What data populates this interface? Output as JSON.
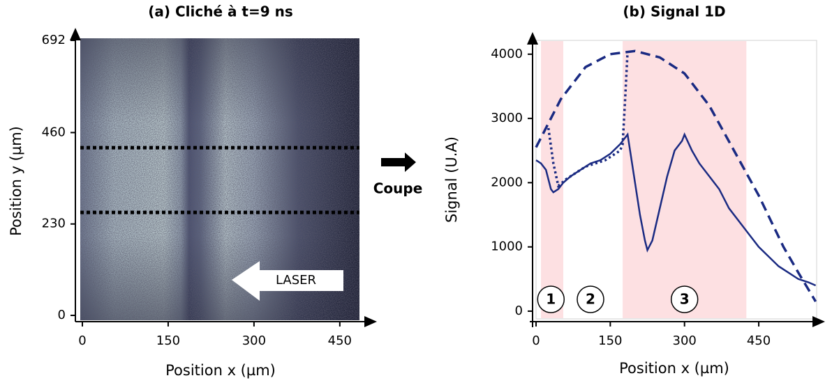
{
  "annotations": [
    "Coupe"
  ],
  "chart_data": [
    {
      "type": "image",
      "title": "(a) Cliché à t=9 ns",
      "xlabel": "Position x (µm)",
      "ylabel": "Position y (µm)",
      "xlim": [
        0,
        560
      ],
      "ylim": [
        0,
        692
      ],
      "xticks": [
        0,
        150,
        300,
        450
      ],
      "yticks": [
        0,
        230,
        460,
        692
      ],
      "cut_lines": [
        422,
        259
      ],
      "arrow_label": "LASER"
    },
    {
      "type": "line",
      "title": "(b) Signal 1D",
      "xlabel": "Position x (µm)",
      "ylabel": "Signal (U.A)",
      "xlim": [
        0,
        567
      ],
      "ylim": [
        -120,
        4215
      ],
      "xticks": [
        0,
        150,
        300,
        450
      ],
      "yticks": [
        0,
        1000,
        2000,
        3000,
        4000
      ],
      "shaded": [
        [
          10,
          55
        ],
        [
          175,
          425
        ]
      ],
      "shade_color": "#fde0e2",
      "region_labels": [
        {
          "label": "1",
          "x": 30
        },
        {
          "label": "2",
          "x": 110
        },
        {
          "label": "3",
          "x": 300
        }
      ],
      "series": [
        {
          "color": "#1a2a82",
          "style": "solid",
          "x": [
            0,
            10,
            20,
            30,
            35,
            45,
            55,
            70,
            90,
            110,
            130,
            150,
            170,
            180,
            185,
            190,
            200,
            210,
            220,
            225,
            235,
            250,
            265,
            280,
            295,
            300,
            315,
            330,
            350,
            370,
            390,
            410,
            430,
            450,
            470,
            490,
            510,
            530,
            550,
            565
          ],
          "values": [
            2350,
            2300,
            2200,
            1900,
            1850,
            1900,
            2000,
            2100,
            2200,
            2300,
            2350,
            2450,
            2600,
            2700,
            2750,
            2500,
            2000,
            1500,
            1100,
            950,
            1100,
            1600,
            2100,
            2500,
            2650,
            2750,
            2500,
            2300,
            2100,
            1900,
            1600,
            1400,
            1200,
            1000,
            850,
            700,
            600,
            500,
            450,
            400
          ]
        },
        {
          "color": "#1a2a82",
          "style": "dashed",
          "x": [
            0,
            50,
            100,
            150,
            200,
            250,
            300,
            350,
            400,
            450,
            500,
            530,
            565
          ],
          "values": [
            2550,
            3300,
            3800,
            4000,
            4050,
            3950,
            3700,
            3200,
            2500,
            1800,
            1000,
            600,
            150
          ]
        },
        {
          "color": "#1a2a82",
          "style": "dotted",
          "x": [
            25,
            35,
            45,
            60,
            100,
            140,
            170,
            175,
            180,
            185
          ],
          "values": [
            2850,
            2300,
            1950,
            2050,
            2250,
            2350,
            2500,
            2600,
            3300,
            4050
          ]
        }
      ]
    }
  ]
}
